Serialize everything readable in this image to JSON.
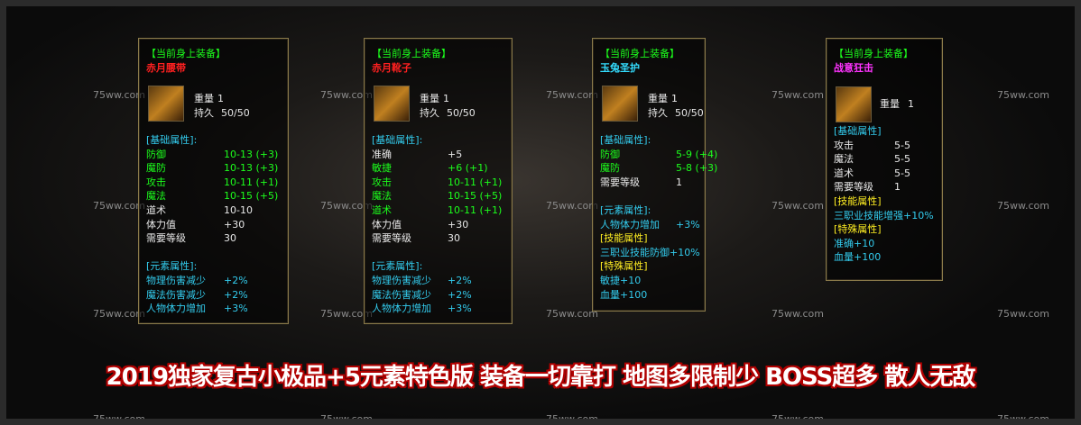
{
  "watermark": "75ww.com",
  "panels": [
    {
      "header": "【当前身上装备】",
      "name": "赤月腰带",
      "stats": [
        [
          "重量",
          "1"
        ],
        [
          "持久",
          "50/50"
        ]
      ],
      "sections": [
        {
          "title": "[基础属性]:",
          "rows": [
            [
              "防御",
              "10-13 (+3)"
            ],
            [
              "魔防",
              "10-13 (+3)"
            ],
            [
              "攻击",
              "10-11 (+1)"
            ],
            [
              "魔法",
              "10-15 (+5)"
            ],
            [
              "道术",
              "10-10"
            ],
            [
              "体力值",
              "+30"
            ],
            [
              "需要等级",
              "30"
            ]
          ]
        },
        {
          "title": "[元素属性]:",
          "rows": [
            [
              "物理伤害减少",
              "+2%"
            ],
            [
              "魔法伤害减少",
              "+2%"
            ],
            [
              "人物体力增加",
              "+3%"
            ]
          ]
        }
      ]
    },
    {
      "header": "【当前身上装备】",
      "name": "赤月靴子",
      "stats": [
        [
          "重量",
          "1"
        ],
        [
          "持久",
          "50/50"
        ]
      ],
      "sections": [
        {
          "title": "[基础属性]:",
          "rows": [
            [
              "准确",
              "+5"
            ],
            [
              "敏捷",
              "+6 (+1)"
            ],
            [
              "攻击",
              "10-11 (+1)"
            ],
            [
              "魔法",
              "10-15 (+5)"
            ],
            [
              "道术",
              "10-11 (+1)"
            ],
            [
              "体力值",
              "+30"
            ],
            [
              "需要等级",
              "30"
            ]
          ]
        },
        {
          "title": "[元素属性]:",
          "rows": [
            [
              "物理伤害减少",
              "+2%"
            ],
            [
              "魔法伤害减少",
              "+2%"
            ],
            [
              "人物体力增加",
              "+3%"
            ]
          ]
        }
      ]
    },
    {
      "header": "【当前身上装备】",
      "name": "玉兔圣护",
      "stats": [
        [
          "重量",
          "1"
        ],
        [
          "持久",
          "50/50"
        ]
      ],
      "sections": [
        {
          "title": "[基础属性]:",
          "rows": [
            [
              "防御",
              "5-9 (+4)"
            ],
            [
              "魔防",
              "5-8 (+3)"
            ],
            [
              "需要等级",
              "1"
            ]
          ]
        },
        {
          "title": "[元素属性]:",
          "rows": [
            [
              "人物体力增加",
              "+3%"
            ]
          ]
        },
        {
          "title": "[技能属性]",
          "rows": [
            [
              "三职业技能防御+10%"
            ]
          ]
        },
        {
          "title": "[特殊属性]",
          "rows": [
            [
              "敏捷+10"
            ],
            [
              "血量+100"
            ]
          ]
        }
      ]
    },
    {
      "header": "【当前身上装备】",
      "name": "战意狂击",
      "stats": [
        [
          "重量",
          "1"
        ]
      ],
      "sections": [
        {
          "title": "[基础属性]",
          "rows": [
            [
              "攻击",
              "5-5"
            ],
            [
              "魔法",
              "5-5"
            ],
            [
              "道术",
              "5-5"
            ],
            [
              "需要等级",
              "1"
            ]
          ]
        },
        {
          "title": "[技能属性]",
          "rows": [
            [
              "三职业技能增强+10%"
            ]
          ]
        },
        {
          "title": "[特殊属性]",
          "rows": [
            [
              "准确+10"
            ],
            [
              "血量+100"
            ]
          ]
        }
      ]
    }
  ],
  "banner": "2019独家复古小极品+5元素特色版 装备一切靠打 地图多限制少 BOSS超多 散人无敌"
}
